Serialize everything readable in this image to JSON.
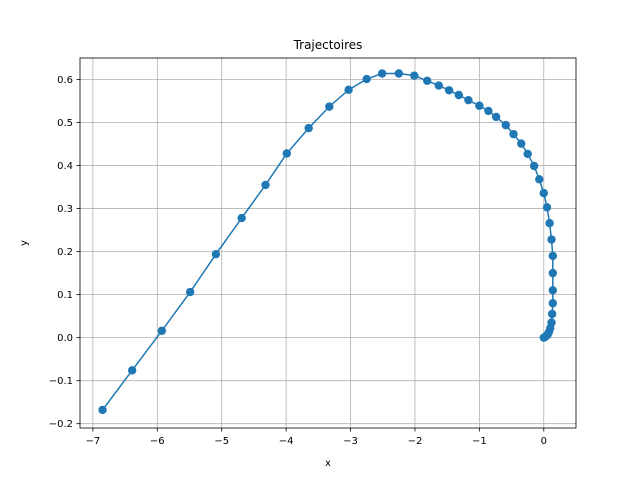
{
  "chart_data": {
    "type": "line",
    "title": "Trajectoires",
    "xlabel": "x",
    "ylabel": "y",
    "xlim": [
      -7.2,
      0.5
    ],
    "ylim": [
      -0.21,
      0.65
    ],
    "xticks": [
      -7,
      -6,
      -5,
      -4,
      -3,
      -2,
      -1,
      0
    ],
    "xtick_labels": [
      "−7",
      "−6",
      "−5",
      "−4",
      "−3",
      "−2",
      "−1",
      "0"
    ],
    "yticks": [
      -0.2,
      -0.1,
      0.0,
      0.1,
      0.2,
      0.3,
      0.4,
      0.5,
      0.6
    ],
    "ytick_labels": [
      "−0.2",
      "−0.1",
      "0.0",
      "0.1",
      "0.2",
      "0.3",
      "0.4",
      "0.5",
      "0.6"
    ],
    "grid": true,
    "color": "#1f77b4",
    "marker": "circle",
    "series": [
      {
        "x": [
          -6.85,
          -6.39,
          -5.93,
          -5.49,
          -5.09,
          -4.69,
          -4.32,
          -3.99,
          -3.65,
          -3.33,
          -3.03,
          -2.75,
          -2.51,
          -2.25,
          -2.01,
          -1.81,
          -1.63,
          -1.47,
          -1.32,
          -1.17,
          -1.0,
          -0.86,
          -0.74,
          -0.59,
          -0.47,
          -0.35,
          -0.25,
          -0.15,
          -0.07,
          0.0,
          0.05,
          0.09,
          0.12,
          0.14,
          0.14,
          0.14,
          0.14,
          0.13,
          0.12,
          0.1,
          0.08,
          0.06,
          0.03,
          0.0
        ],
        "y": [
          -0.168,
          -0.076,
          0.016,
          0.106,
          0.194,
          0.278,
          0.355,
          0.428,
          0.487,
          0.537,
          0.576,
          0.601,
          0.614,
          0.614,
          0.609,
          0.597,
          0.586,
          0.575,
          0.564,
          0.552,
          0.539,
          0.527,
          0.513,
          0.494,
          0.473,
          0.451,
          0.427,
          0.399,
          0.368,
          0.336,
          0.303,
          0.266,
          0.228,
          0.19,
          0.15,
          0.11,
          0.08,
          0.055,
          0.035,
          0.022,
          0.013,
          0.007,
          0.003,
          0.0
        ]
      }
    ]
  }
}
